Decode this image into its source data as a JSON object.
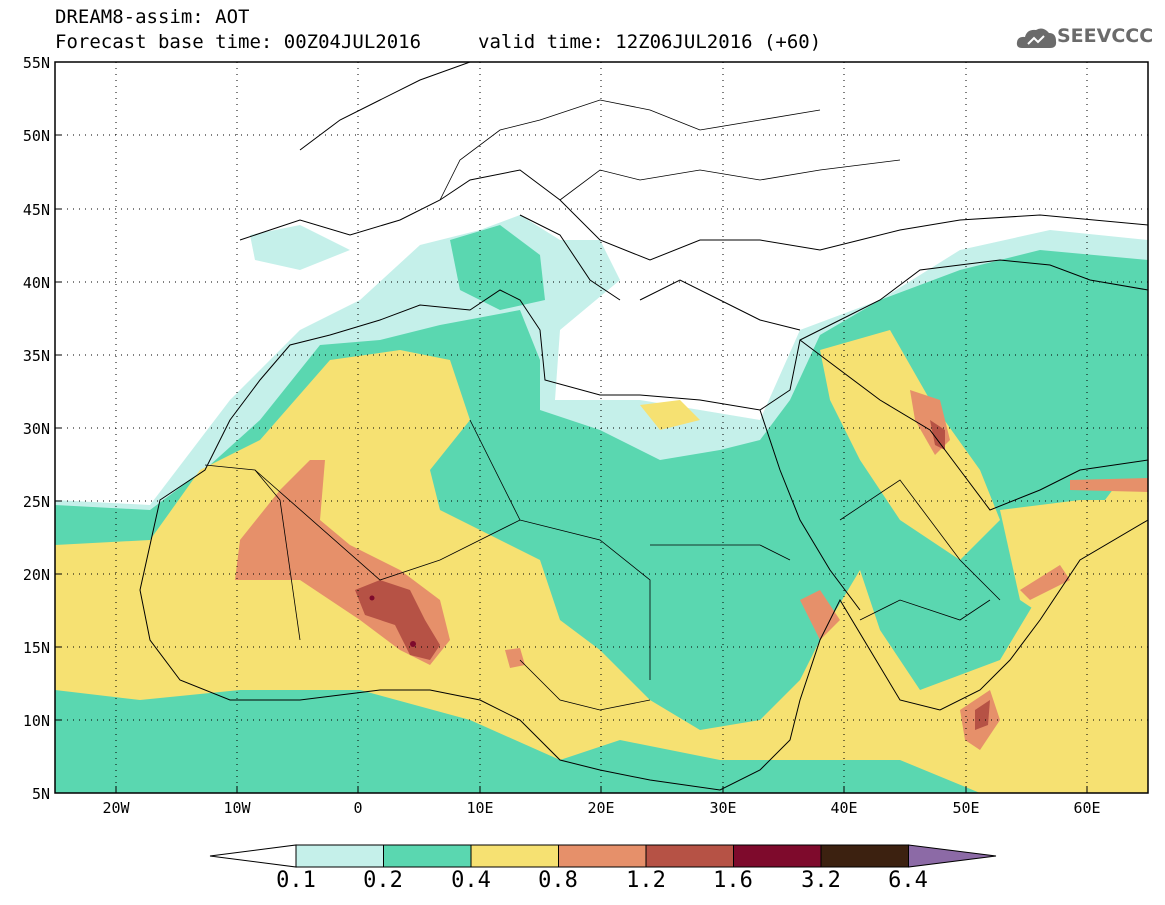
{
  "header": {
    "line1": "DREAM8-assim: AOT",
    "line2": "Forecast base time: 00Z04JUL2016",
    "line3": "valid time: 12Z06JUL2016 (+60)"
  },
  "logo": {
    "text": "SEEVCCC",
    "icon": "cloud-icon"
  },
  "map": {
    "lon_range": [
      -25,
      65
    ],
    "lat_range": [
      5,
      55
    ],
    "lat_labels": [
      "55N",
      "50N",
      "45N",
      "40N",
      "35N",
      "30N",
      "25N",
      "20N",
      "15N",
      "10N",
      "5N"
    ],
    "lon_labels": [
      "20W",
      "10W",
      "0",
      "10E",
      "20E",
      "30E",
      "40E",
      "50E",
      "60E"
    ],
    "grid": "dotted",
    "variable": "AOT"
  },
  "colorbar": {
    "labels": [
      "0.1",
      "0.2",
      "0.4",
      "0.8",
      "1.2",
      "1.6",
      "3.2",
      "6.4"
    ],
    "colors": [
      "#ffffff",
      "#c5f0ea",
      "#5ad7b0",
      "#f6e172",
      "#e6906a",
      "#b65245",
      "#7e0a2c",
      "#3c2110",
      "#8c6aa6"
    ]
  }
}
